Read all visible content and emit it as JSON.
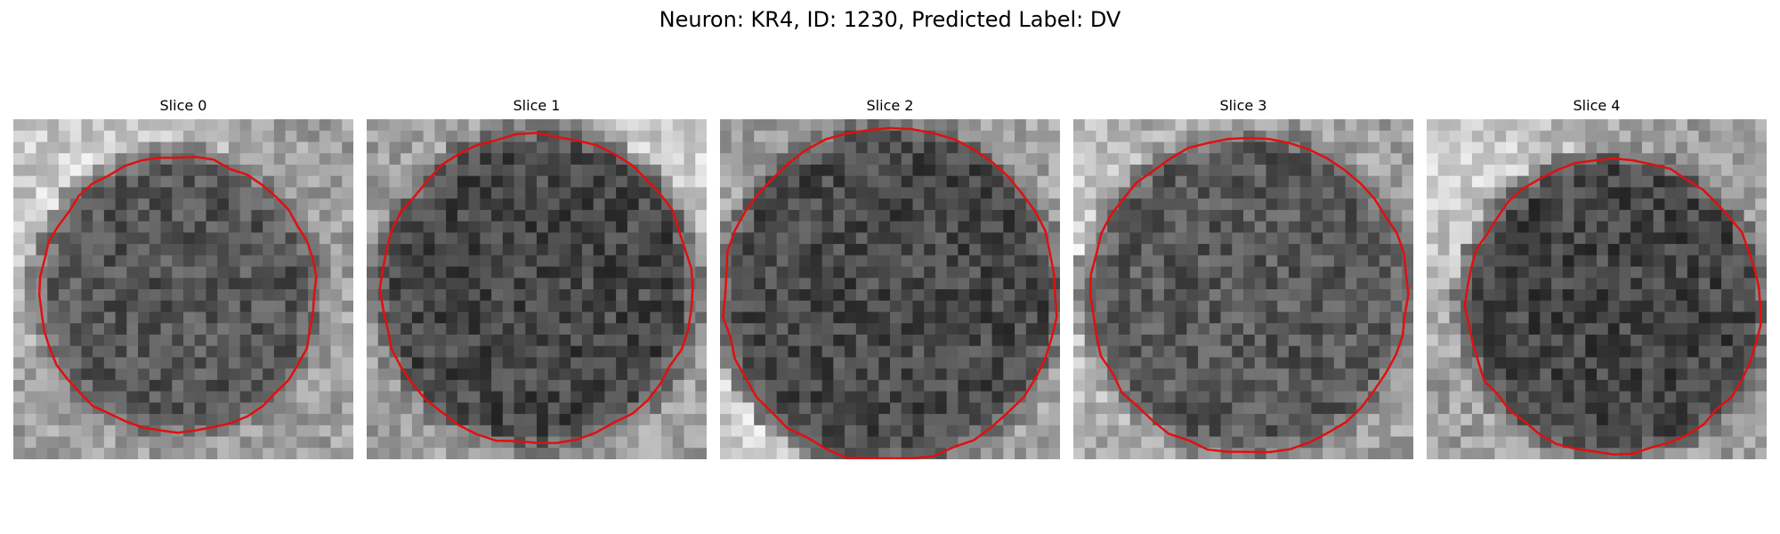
{
  "figure": {
    "title": "Neuron: KR4, ID: 1230, Predicted Label: DV"
  },
  "panels": [
    {
      "title": "Slice 0"
    },
    {
      "title": "Slice 1"
    },
    {
      "title": "Slice 2"
    },
    {
      "title": "Slice 3"
    },
    {
      "title": "Slice 4"
    }
  ],
  "colors": {
    "contour": "#e01010",
    "background": "#ffffff"
  }
}
